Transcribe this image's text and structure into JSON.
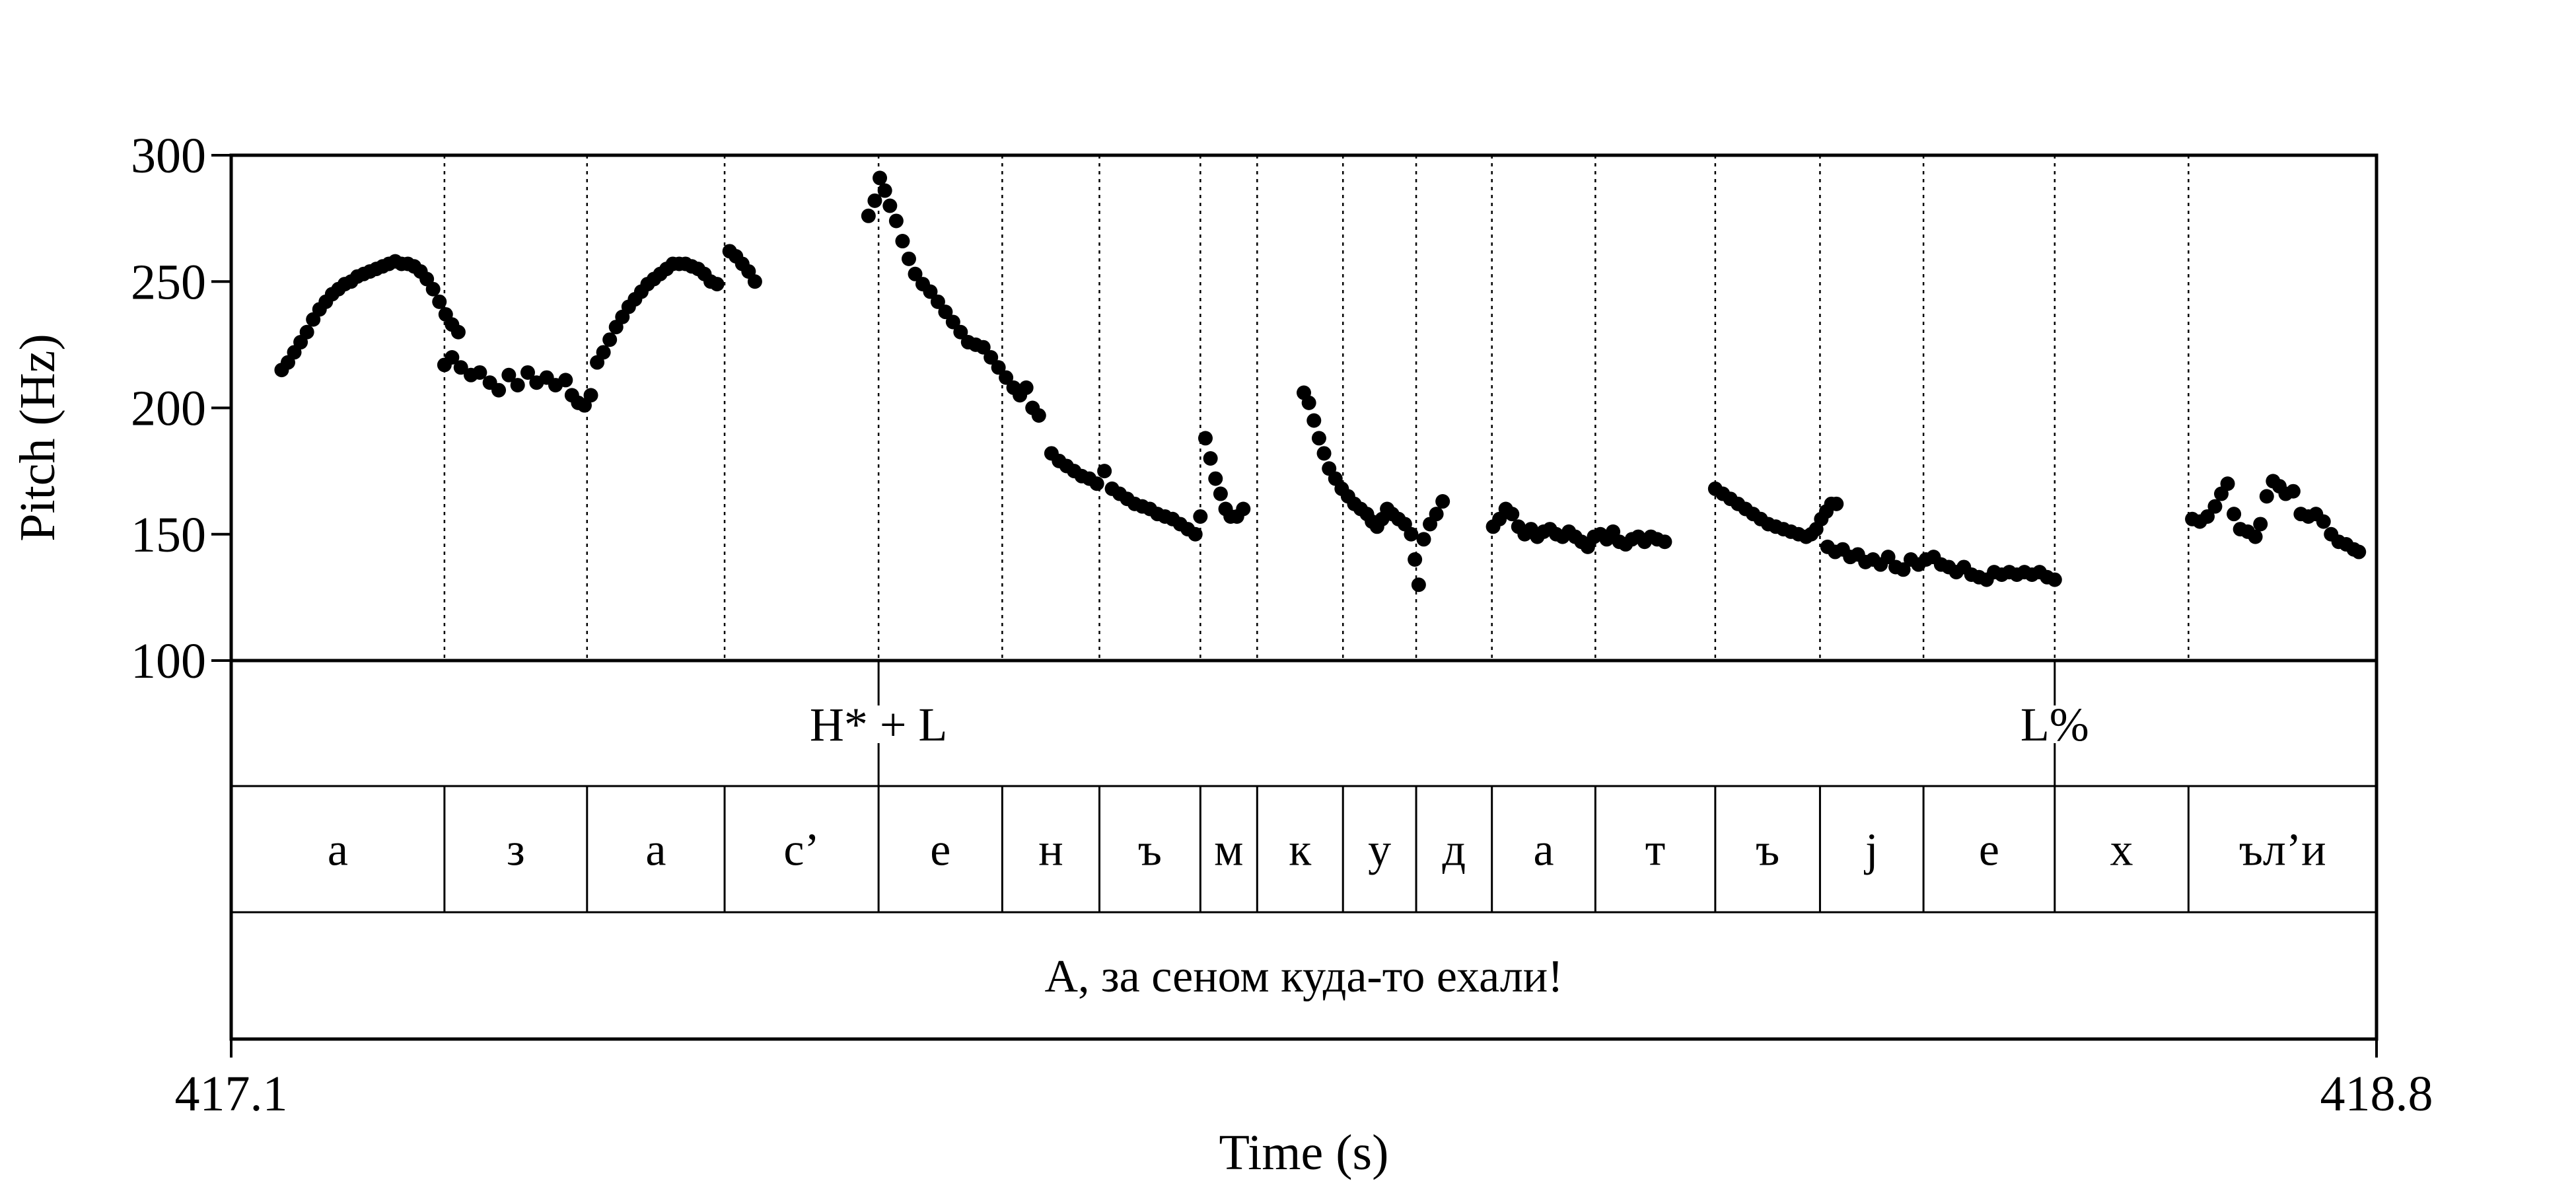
{
  "chart_data": {
    "type": "scatter",
    "title": "",
    "xlabel": "Time (s)",
    "ylabel": "Pitch (Hz)",
    "xlim": [
      417.1,
      418.8
    ],
    "ylim": [
      100,
      300
    ],
    "x_tick_labels": [
      "417.1",
      "418.8"
    ],
    "y_ticks": [
      100,
      150,
      200,
      250,
      300
    ],
    "y_tick_labels": [
      "100",
      "150",
      "200",
      "250",
      "300"
    ],
    "boundaries": [
      417.269,
      417.382,
      417.491,
      417.613,
      417.711,
      417.788,
      417.868,
      417.913,
      417.981,
      418.039,
      418.099,
      418.181,
      418.276,
      418.359,
      418.441,
      418.545,
      418.651
    ],
    "segments": [
      {
        "label": "а",
        "start": 417.1,
        "end": 417.269
      },
      {
        "label": "з",
        "start": 417.269,
        "end": 417.382
      },
      {
        "label": "а",
        "start": 417.382,
        "end": 417.491
      },
      {
        "label": "с’",
        "start": 417.491,
        "end": 417.613
      },
      {
        "label": "е",
        "start": 417.613,
        "end": 417.711
      },
      {
        "label": "н",
        "start": 417.711,
        "end": 417.788
      },
      {
        "label": "ъ",
        "start": 417.788,
        "end": 417.868
      },
      {
        "label": "м",
        "start": 417.868,
        "end": 417.913
      },
      {
        "label": "к",
        "start": 417.913,
        "end": 417.981
      },
      {
        "label": "у",
        "start": 417.981,
        "end": 418.039
      },
      {
        "label": "д",
        "start": 418.039,
        "end": 418.099
      },
      {
        "label": "а",
        "start": 418.099,
        "end": 418.181
      },
      {
        "label": "т",
        "start": 418.181,
        "end": 418.276
      },
      {
        "label": "ъ",
        "start": 418.276,
        "end": 418.359
      },
      {
        "label": "j",
        "start": 418.359,
        "end": 418.441
      },
      {
        "label": "е",
        "start": 418.441,
        "end": 418.545
      },
      {
        "label": "х",
        "start": 418.545,
        "end": 418.651
      },
      {
        "label": "ъл’и",
        "start": 418.651,
        "end": 418.8
      }
    ],
    "tones": [
      {
        "label": "H* + L",
        "time": 417.613
      },
      {
        "label": "L%",
        "time": 418.545
      }
    ],
    "sentence": "А, за сеном куда-то ехали!",
    "pitch_contours": [
      {
        "points": [
          [
            417.14,
            215
          ],
          [
            417.145,
            218
          ],
          [
            417.15,
            222
          ],
          [
            417.155,
            226
          ],
          [
            417.16,
            230
          ],
          [
            417.165,
            235
          ],
          [
            417.17,
            239
          ],
          [
            417.175,
            242
          ],
          [
            417.18,
            245
          ],
          [
            417.185,
            247
          ],
          [
            417.19,
            249
          ],
          [
            417.195,
            250
          ],
          [
            417.2,
            252
          ],
          [
            417.205,
            253
          ],
          [
            417.21,
            254
          ],
          [
            417.215,
            255
          ],
          [
            417.22,
            256
          ],
          [
            417.225,
            257
          ],
          [
            417.23,
            258
          ],
          [
            417.235,
            257
          ],
          [
            417.24,
            257
          ],
          [
            417.245,
            256
          ],
          [
            417.25,
            254
          ],
          [
            417.255,
            251
          ],
          [
            417.26,
            247
          ],
          [
            417.265,
            242
          ],
          [
            417.27,
            237
          ],
          [
            417.275,
            233
          ],
          [
            417.28,
            230
          ]
        ]
      },
      {
        "points": [
          [
            417.269,
            217
          ],
          [
            417.275,
            220
          ],
          [
            417.282,
            216
          ],
          [
            417.29,
            213
          ],
          [
            417.297,
            214
          ],
          [
            417.305,
            210
          ],
          [
            417.312,
            207
          ],
          [
            417.32,
            213
          ],
          [
            417.327,
            209
          ],
          [
            417.335,
            214
          ],
          [
            417.342,
            210
          ],
          [
            417.35,
            212
          ],
          [
            417.357,
            209
          ],
          [
            417.365,
            211
          ],
          [
            417.37,
            205
          ],
          [
            417.375,
            202
          ],
          [
            417.38,
            201
          ],
          [
            417.385,
            205
          ]
        ]
      },
      {
        "points": [
          [
            417.39,
            218
          ],
          [
            417.395,
            222
          ],
          [
            417.4,
            227
          ],
          [
            417.405,
            232
          ],
          [
            417.41,
            236
          ],
          [
            417.415,
            240
          ],
          [
            417.42,
            243
          ],
          [
            417.425,
            246
          ],
          [
            417.43,
            249
          ],
          [
            417.435,
            251
          ],
          [
            417.44,
            253
          ],
          [
            417.445,
            255
          ],
          [
            417.45,
            257
          ],
          [
            417.455,
            257
          ],
          [
            417.46,
            257
          ],
          [
            417.465,
            256
          ],
          [
            417.47,
            255
          ],
          [
            417.475,
            253
          ],
          [
            417.48,
            250
          ],
          [
            417.485,
            249
          ]
        ]
      },
      {
        "points": [
          [
            417.495,
            262
          ],
          [
            417.5,
            260
          ],
          [
            417.505,
            257
          ],
          [
            417.51,
            254
          ],
          [
            417.515,
            250
          ]
        ]
      },
      {
        "points": [
          [
            417.605,
            276
          ],
          [
            417.61,
            282
          ],
          [
            417.614,
            291
          ],
          [
            417.618,
            286
          ],
          [
            417.622,
            280
          ],
          [
            417.627,
            274
          ],
          [
            417.632,
            266
          ],
          [
            417.637,
            259
          ],
          [
            417.642,
            253
          ],
          [
            417.648,
            249
          ],
          [
            417.654,
            246
          ],
          [
            417.66,
            242
          ],
          [
            417.666,
            238
          ],
          [
            417.672,
            234
          ],
          [
            417.678,
            230
          ],
          [
            417.684,
            226
          ],
          [
            417.69,
            225
          ],
          [
            417.696,
            224
          ],
          [
            417.702,
            220
          ],
          [
            417.708,
            216
          ],
          [
            417.714,
            212
          ],
          [
            417.72,
            208
          ],
          [
            417.725,
            205
          ],
          [
            417.73,
            208
          ],
          [
            417.735,
            200
          ],
          [
            417.74,
            197
          ]
        ]
      },
      {
        "points": [
          [
            417.75,
            182
          ],
          [
            417.756,
            179
          ],
          [
            417.762,
            177
          ],
          [
            417.768,
            175
          ],
          [
            417.774,
            173
          ],
          [
            417.78,
            172
          ],
          [
            417.786,
            170
          ],
          [
            417.792,
            175
          ],
          [
            417.798,
            168
          ],
          [
            417.804,
            166
          ],
          [
            417.81,
            164
          ],
          [
            417.816,
            162
          ],
          [
            417.822,
            161
          ],
          [
            417.828,
            160
          ],
          [
            417.834,
            158
          ],
          [
            417.84,
            157
          ],
          [
            417.846,
            156
          ],
          [
            417.852,
            154
          ],
          [
            417.858,
            152
          ],
          [
            417.864,
            150
          ],
          [
            417.868,
            157
          ]
        ]
      },
      {
        "points": [
          [
            417.872,
            188
          ],
          [
            417.876,
            180
          ],
          [
            417.88,
            172
          ],
          [
            417.884,
            166
          ],
          [
            417.888,
            160
          ],
          [
            417.892,
            157
          ],
          [
            417.897,
            157
          ],
          [
            417.902,
            160
          ]
        ]
      },
      {
        "points": [
          [
            417.95,
            206
          ],
          [
            417.954,
            202
          ],
          [
            417.958,
            195
          ],
          [
            417.962,
            188
          ],
          [
            417.966,
            182
          ],
          [
            417.97,
            176
          ],
          [
            417.975,
            172
          ],
          [
            417.98,
            168
          ],
          [
            417.985,
            165
          ],
          [
            417.99,
            162
          ],
          [
            417.995,
            160
          ],
          [
            418.0,
            158
          ],
          [
            418.004,
            155
          ],
          [
            418.008,
            153
          ],
          [
            418.012,
            156
          ],
          [
            418.016,
            160
          ],
          [
            418.02,
            158
          ],
          [
            418.025,
            156
          ],
          [
            418.03,
            154
          ],
          [
            418.035,
            150
          ],
          [
            418.038,
            140
          ],
          [
            418.041,
            130
          ],
          [
            418.045,
            148
          ],
          [
            418.05,
            154
          ],
          [
            418.055,
            158
          ],
          [
            418.06,
            163
          ]
        ]
      },
      {
        "points": [
          [
            418.1,
            153
          ],
          [
            418.105,
            156
          ],
          [
            418.11,
            160
          ],
          [
            418.115,
            158
          ],
          [
            418.12,
            153
          ],
          [
            418.125,
            150
          ],
          [
            418.13,
            152
          ],
          [
            418.135,
            149
          ],
          [
            418.14,
            151
          ],
          [
            418.145,
            152
          ],
          [
            418.15,
            150
          ],
          [
            418.155,
            149
          ],
          [
            418.16,
            151
          ],
          [
            418.165,
            149
          ],
          [
            418.17,
            147
          ],
          [
            418.175,
            145
          ],
          [
            418.18,
            149
          ],
          [
            418.185,
            150
          ],
          [
            418.19,
            148
          ],
          [
            418.195,
            151
          ],
          [
            418.2,
            147
          ],
          [
            418.205,
            146
          ],
          [
            418.21,
            148
          ],
          [
            418.215,
            149
          ],
          [
            418.22,
            147
          ],
          [
            418.225,
            149
          ],
          [
            418.23,
            148
          ],
          [
            418.236,
            147
          ]
        ]
      },
      {
        "points": [
          [
            418.276,
            168
          ],
          [
            418.282,
            166
          ],
          [
            418.288,
            164
          ],
          [
            418.294,
            162
          ],
          [
            418.3,
            160
          ],
          [
            418.306,
            158
          ],
          [
            418.312,
            156
          ],
          [
            418.318,
            154
          ],
          [
            418.324,
            153
          ],
          [
            418.33,
            152
          ],
          [
            418.336,
            151
          ],
          [
            418.342,
            150
          ],
          [
            418.348,
            149
          ],
          [
            418.352,
            150
          ],
          [
            418.356,
            152
          ],
          [
            418.36,
            156
          ],
          [
            418.364,
            159
          ],
          [
            418.368,
            162
          ],
          [
            418.372,
            162
          ]
        ]
      },
      {
        "points": [
          [
            418.365,
            145
          ],
          [
            418.371,
            143
          ],
          [
            418.377,
            144
          ],
          [
            418.383,
            141
          ],
          [
            418.389,
            142
          ],
          [
            418.395,
            139
          ],
          [
            418.401,
            140
          ],
          [
            418.407,
            138
          ],
          [
            418.413,
            141
          ],
          [
            418.419,
            137
          ],
          [
            418.425,
            136
          ],
          [
            418.431,
            140
          ],
          [
            418.437,
            138
          ],
          [
            418.443,
            140
          ],
          [
            418.449,
            141
          ],
          [
            418.455,
            138
          ],
          [
            418.461,
            137
          ],
          [
            418.467,
            135
          ],
          [
            418.473,
            137
          ],
          [
            418.479,
            134
          ],
          [
            418.485,
            133
          ],
          [
            418.491,
            132
          ],
          [
            418.497,
            135
          ],
          [
            418.503,
            134
          ],
          [
            418.509,
            135
          ],
          [
            418.515,
            134
          ],
          [
            418.521,
            135
          ],
          [
            418.527,
            134
          ],
          [
            418.533,
            135
          ],
          [
            418.539,
            133
          ],
          [
            418.545,
            132
          ]
        ]
      },
      {
        "points": [
          [
            418.654,
            156
          ],
          [
            418.66,
            155
          ],
          [
            418.666,
            157
          ],
          [
            418.672,
            161
          ],
          [
            418.677,
            166
          ],
          [
            418.682,
            170
          ],
          [
            418.687,
            158
          ],
          [
            418.692,
            152
          ],
          [
            418.698,
            151
          ],
          [
            418.704,
            149
          ],
          [
            418.708,
            154
          ],
          [
            418.713,
            165
          ],
          [
            418.718,
            171
          ],
          [
            418.723,
            169
          ],
          [
            418.728,
            166
          ],
          [
            418.734,
            167
          ],
          [
            418.74,
            158
          ],
          [
            418.746,
            157
          ],
          [
            418.752,
            158
          ],
          [
            418.758,
            155
          ],
          [
            418.764,
            150
          ],
          [
            418.77,
            147
          ],
          [
            418.776,
            146
          ],
          [
            418.782,
            144
          ],
          [
            418.786,
            143
          ]
        ]
      }
    ]
  }
}
